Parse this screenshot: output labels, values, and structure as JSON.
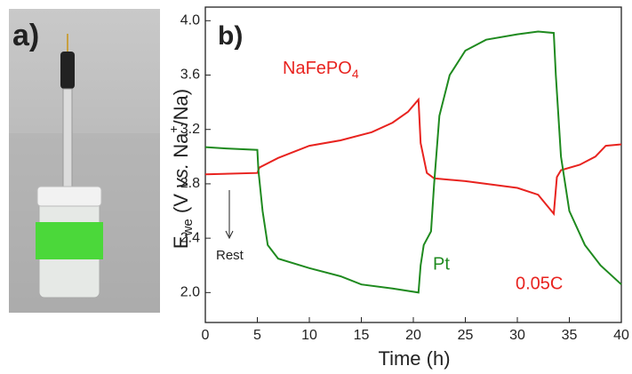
{
  "chart_data": {
    "type": "line",
    "panel_labels": [
      "a)",
      "b)"
    ],
    "xlabel": "Time (h)",
    "ylabel_parts": [
      "E",
      "we",
      " (V ",
      "vs.",
      " Na",
      "+",
      "/Na)"
    ],
    "xlim": [
      0,
      40
    ],
    "ylim": [
      1.78,
      4.1
    ],
    "xticks": [
      0,
      5,
      10,
      15,
      20,
      25,
      30,
      35,
      40
    ],
    "yticks": [
      {
        "value": 2.0,
        "label": "2.0"
      },
      {
        "value": 2.4,
        "label": "2.4"
      },
      {
        "value": 2.8,
        "label": "2.8"
      },
      {
        "value": 3.2,
        "label": "3.2"
      },
      {
        "value": 3.6,
        "label": "3.6"
      },
      {
        "value": 4.0,
        "label": "4.0"
      }
    ],
    "annotations": [
      "Rest",
      "0.05C"
    ],
    "series": [
      {
        "name": "NaFePO4",
        "color": "#e8231f",
        "x": [
          0,
          5,
          5.2,
          7,
          10,
          13,
          16,
          18,
          19.5,
          20.5,
          20.7,
          21.3,
          22,
          25,
          30,
          32,
          33.5,
          33.8,
          34.2,
          36,
          37.5,
          38.5,
          40
        ],
        "values": [
          2.87,
          2.88,
          2.92,
          2.99,
          3.08,
          3.12,
          3.18,
          3.25,
          3.33,
          3.42,
          3.1,
          2.88,
          2.84,
          2.82,
          2.77,
          2.72,
          2.58,
          2.85,
          2.9,
          2.94,
          3.0,
          3.08,
          3.09
        ]
      },
      {
        "name": "Pt",
        "color": "#1f8a1f",
        "x": [
          0,
          2,
          5,
          5.1,
          5.5,
          6,
          7,
          10,
          13,
          15,
          18,
          20.5,
          20.7,
          21,
          21.7,
          22,
          22.5,
          23.5,
          25,
          27,
          30,
          32,
          33.5,
          33.7,
          34.2,
          35,
          36.5,
          38,
          40
        ],
        "values": [
          3.07,
          3.06,
          3.05,
          2.9,
          2.6,
          2.35,
          2.25,
          2.18,
          2.12,
          2.06,
          2.03,
          2.0,
          2.2,
          2.35,
          2.45,
          2.8,
          3.3,
          3.6,
          3.78,
          3.86,
          3.9,
          3.92,
          3.91,
          3.6,
          3.0,
          2.6,
          2.35,
          2.2,
          2.06
        ]
      }
    ]
  }
}
